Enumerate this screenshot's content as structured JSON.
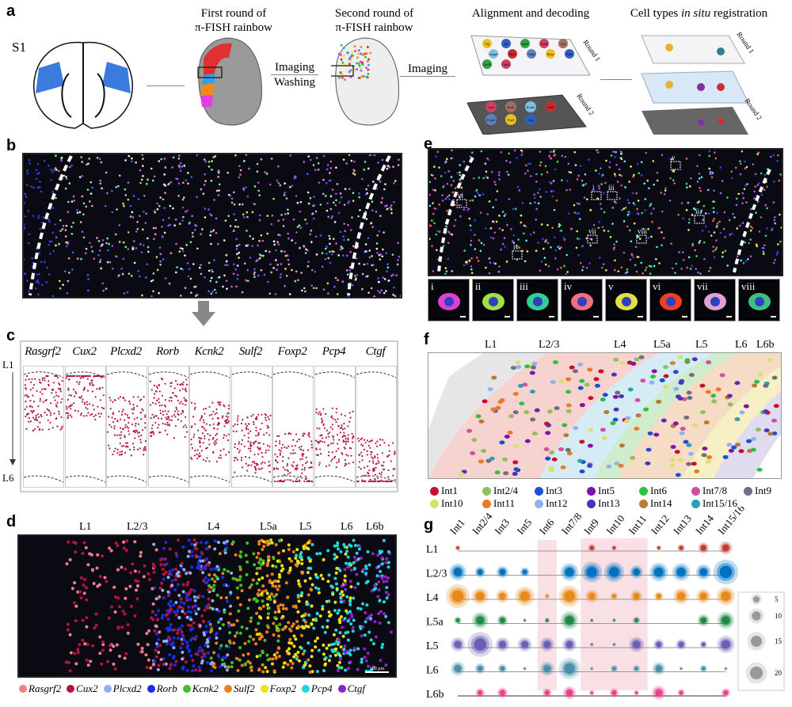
{
  "panel_labels": [
    "a",
    "b",
    "c",
    "d",
    "e",
    "f",
    "g"
  ],
  "panel_a": {
    "region_label": "S1",
    "step1_title": [
      "First round of",
      "π-FISH rainbow"
    ],
    "arrow2_labels": [
      "Imaging",
      "Washing"
    ],
    "step2_title": [
      "Second round of",
      "π-FISH rainbow"
    ],
    "arrow3_label": "Imaging",
    "step3_title": "Alignment and decoding",
    "step4_title_pre": "Cell types ",
    "step4_title_em": "in situ",
    "step4_title_post": " registration",
    "round1": "Round 1",
    "round2": "Round 2",
    "round1_genes": [
      "Vip",
      "Sst",
      "Gad1",
      "Pvalb",
      "Cck",
      "Lamp5",
      "Nos1",
      "Calb2",
      "Rora",
      "Ndnf",
      "Cxcl14",
      "Cplx3"
    ],
    "round2_genes": [
      "Cux2",
      "Rorb",
      "Kcnk2",
      "Sulf2",
      "Foxp2",
      "Pcp4",
      "Ctgf"
    ]
  },
  "panel_c": {
    "genes": [
      "Rasgrf2",
      "Cux2",
      "Plcxd2",
      "Rorb",
      "Kcnk2",
      "Sulf2",
      "Foxp2",
      "Pcp4",
      "Ctgf"
    ],
    "top_label": "L1",
    "bottom_label": "L6",
    "dot_color": "#b5174a"
  },
  "panel_d": {
    "layers": [
      "L1",
      "L2/3",
      "L4",
      "L5a",
      "L5",
      "L6",
      "L6b"
    ],
    "legend": [
      {
        "name": "Rasgrf2",
        "color": "#f07f8a"
      },
      {
        "name": "Cux2",
        "color": "#b5123f"
      },
      {
        "name": "Plcxd2",
        "color": "#8fb0f0"
      },
      {
        "name": "Rorb",
        "color": "#1a2ee0"
      },
      {
        "name": "Kcnk2",
        "color": "#3cc02a"
      },
      {
        "name": "Sulf2",
        "color": "#e8801e"
      },
      {
        "name": "Foxp2",
        "color": "#f0e010"
      },
      {
        "name": "Pcp4",
        "color": "#20d8d8"
      },
      {
        "name": "Ctgf",
        "color": "#9020c8"
      }
    ],
    "scale_bar": "100 μm"
  },
  "panel_e": {
    "box_labels": [
      "i",
      "ii",
      "iii",
      "iv",
      "v",
      "vi",
      "vii",
      "viii"
    ]
  },
  "panel_f": {
    "layers": [
      "L1",
      "L2/3",
      "L4",
      "L5a",
      "L5",
      "L6",
      "L6b"
    ],
    "band_colors": [
      "#e6e6e6",
      "#f6d3cf",
      "#d6ecf4",
      "#cfeccc",
      "#f6dcc4",
      "#f6f0c4",
      "#e0dcf0"
    ],
    "legend": [
      {
        "name": "Int1",
        "color": "#c8102e"
      },
      {
        "name": "Int2/4",
        "color": "#8fc060"
      },
      {
        "name": "Int3",
        "color": "#1a50d0"
      },
      {
        "name": "Int5",
        "color": "#8010b0"
      },
      {
        "name": "Int6",
        "color": "#30c040"
      },
      {
        "name": "Int7/8",
        "color": "#d050a0"
      },
      {
        "name": "Int9",
        "color": "#6a7080"
      },
      {
        "name": "Int10",
        "color": "#d8e070"
      },
      {
        "name": "Int11",
        "color": "#e87a28"
      },
      {
        "name": "Int12",
        "color": "#90b0f0"
      },
      {
        "name": "Int13",
        "color": "#5030b8"
      },
      {
        "name": "Int14",
        "color": "#b87838"
      },
      {
        "name": "Int15/16",
        "color": "#2aa0b0"
      }
    ]
  },
  "chart_data": {
    "type": "bubble",
    "categories": [
      "Int1",
      "Int2/4",
      "Int3",
      "Int5",
      "Int6",
      "Int7/8",
      "Int9",
      "Int10",
      "Int11",
      "Int12",
      "Int13",
      "Int14",
      "Int15/16"
    ],
    "rows": [
      "L1",
      "L2/3",
      "L4",
      "L5a",
      "L5",
      "L6",
      "L6b"
    ],
    "row_colors": [
      "#c0392b",
      "#0070c0",
      "#e8891b",
      "#1e8a4a",
      "#6a5fb5",
      "#4a8fa8",
      "#e8408c"
    ],
    "values": [
      [
        1,
        0,
        0,
        0,
        0,
        0,
        2,
        1,
        0,
        1,
        2,
        4,
        6
      ],
      [
        10,
        4,
        5,
        3,
        0,
        11,
        15,
        14,
        6,
        12,
        11,
        8,
        22
      ],
      [
        20,
        10,
        6,
        13,
        1,
        16,
        6,
        2,
        5,
        3,
        9,
        7,
        12
      ],
      [
        2,
        9,
        4,
        0.5,
        1,
        11,
        0.5,
        0.5,
        2,
        0,
        0,
        5,
        10
      ],
      [
        7,
        22,
        7,
        7,
        7,
        7,
        0.5,
        0.5,
        8,
        4,
        4,
        2,
        11
      ],
      [
        7,
        4,
        3,
        0.5,
        7,
        16,
        0.5,
        2,
        2,
        6,
        0.5,
        2,
        0.5
      ],
      [
        0,
        3,
        4,
        0,
        3,
        6,
        1,
        3,
        1,
        7,
        2,
        0,
        3
      ]
    ],
    "highlighted_columns": [
      "Int6",
      "Int9",
      "Int10"
    ],
    "size_legend": [
      5,
      10,
      15,
      20
    ]
  }
}
